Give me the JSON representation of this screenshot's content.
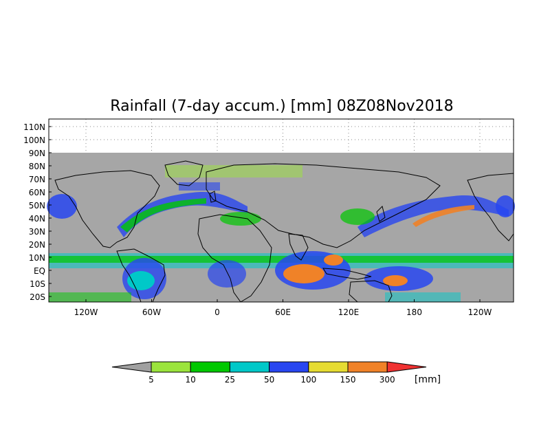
{
  "title": "Rainfall (7-day accum.) [mm] 08Z08Nov2018",
  "map": {
    "lat_labels": [
      "110N",
      "100N",
      "90N",
      "80N",
      "70N",
      "60N",
      "50N",
      "40N",
      "30N",
      "20N",
      "10N",
      "EQ",
      "10S",
      "20S"
    ],
    "lon_labels": [
      "120W",
      "60W",
      "0",
      "60E",
      "120E",
      "180",
      "120W"
    ],
    "colors": {
      "no_data": "#a0a0a0",
      "ocean_dry": "#a6a6a6",
      "land_edge": "#000000"
    }
  },
  "legend": {
    "units": "[mm]",
    "ticks": [
      "5",
      "10",
      "25",
      "50",
      "100",
      "150",
      "300"
    ],
    "colors": [
      "#a0a0a0",
      "#9be43c",
      "#00c800",
      "#00c8c8",
      "#2846f0",
      "#e6dc32",
      "#f08228",
      "#f03232"
    ]
  }
}
